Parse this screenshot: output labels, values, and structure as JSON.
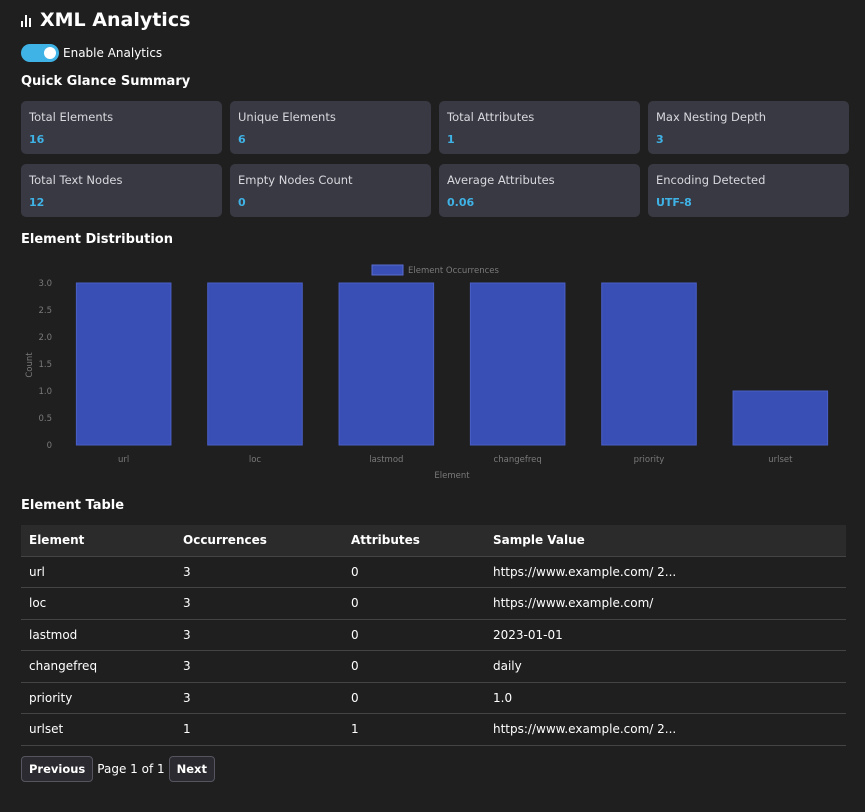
{
  "header": {
    "title": "XML Analytics",
    "icon": "bar-chart-icon"
  },
  "toggle": {
    "label": "Enable Analytics",
    "on": true,
    "color": "#3fb3e6"
  },
  "summary": {
    "title": "Quick Glance Summary",
    "cards": [
      {
        "label": "Total Elements",
        "value": "16"
      },
      {
        "label": "Unique Elements",
        "value": "6"
      },
      {
        "label": "Total Attributes",
        "value": "1"
      },
      {
        "label": "Max Nesting Depth",
        "value": "3"
      },
      {
        "label": "Total Text Nodes",
        "value": "12"
      },
      {
        "label": "Empty Nodes Count",
        "value": "0"
      },
      {
        "label": "Average Attributes",
        "value": "0.06"
      },
      {
        "label": "Encoding Detected",
        "value": "UTF-8"
      }
    ]
  },
  "distribution": {
    "title": "Element Distribution"
  },
  "chart_data": {
    "type": "bar",
    "categories": [
      "url",
      "loc",
      "lastmod",
      "changefreq",
      "priority",
      "urlset"
    ],
    "series": [
      {
        "name": "Element Occurrences",
        "values": [
          3,
          3,
          3,
          3,
          3,
          1
        ],
        "color": "#3a4fb5"
      }
    ],
    "xlabel": "Element",
    "ylabel": "Count",
    "ylim": [
      0,
      3
    ],
    "yticks": [
      "0",
      "0.5",
      "1.0",
      "1.5",
      "2.0",
      "2.5",
      "3.0"
    ],
    "legend": "top-center",
    "grid": false
  },
  "table": {
    "title": "Element Table",
    "columns": [
      "Element",
      "Occurrences",
      "Attributes",
      "Sample Value"
    ],
    "rows": [
      [
        "url",
        "3",
        "0",
        "https://www.example.com/ 2..."
      ],
      [
        "loc",
        "3",
        "0",
        "https://www.example.com/"
      ],
      [
        "lastmod",
        "3",
        "0",
        "2023-01-01"
      ],
      [
        "changefreq",
        "3",
        "0",
        "daily"
      ],
      [
        "priority",
        "3",
        "0",
        "1.0"
      ],
      [
        "urlset",
        "1",
        "1",
        "https://www.example.com/ 2..."
      ]
    ]
  },
  "pagination": {
    "previous": "Previous",
    "info": "Page 1 of 1",
    "next": "Next"
  }
}
